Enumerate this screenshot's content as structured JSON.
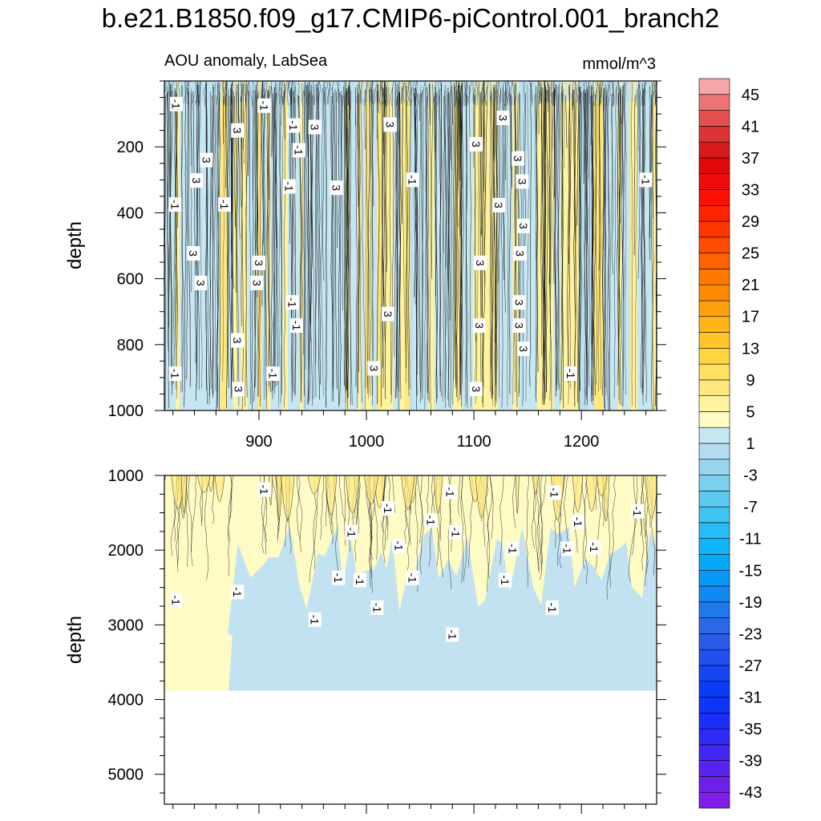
{
  "chart_data": {
    "type": "contour",
    "title": "b.e21.B1850.f09_g17.CMIP6-piControl.001_branch2",
    "subtitle_left": "AOU anomaly, LabSea",
    "units": "mmol/m^3",
    "colorbar": {
      "levels": [
        -45,
        -43,
        -41,
        -39,
        -37,
        -35,
        -33,
        -31,
        -29,
        -27,
        -25,
        -23,
        -21,
        -19,
        -17,
        -15,
        -13,
        -11,
        -9,
        -7,
        -5,
        -3,
        -1,
        1,
        3,
        5,
        7,
        9,
        11,
        13,
        15,
        17,
        19,
        21,
        23,
        25,
        27,
        29,
        31,
        33,
        35,
        37,
        39,
        41,
        43,
        45
      ],
      "tick_labels": [
        "-43",
        "-39",
        "-35",
        "-31",
        "-27",
        "-23",
        "-19",
        "-15",
        "-11",
        "-7",
        "-3",
        "1",
        "5",
        "9",
        "13",
        "17",
        "21",
        "25",
        "29",
        "33",
        "37",
        "41",
        "45"
      ],
      "colors": [
        "#7f1ee8",
        "#6d20ec",
        "#5a22f0",
        "#4426f4",
        "#2e2af7",
        "#1c2ff9",
        "#0f34fa",
        "#0a3cf8",
        "#1446f2",
        "#2050ee",
        "#2a5ae8",
        "#2a68e6",
        "#1f78ec",
        "#1288f2",
        "#0898f6",
        "#06a8f8",
        "#10b4f8",
        "#26bcf6",
        "#40c4f2",
        "#5ccaf0",
        "#7ccfee",
        "#98d4ee",
        "#b4dcf0",
        "#c6e6f2",
        "#fefbc4",
        "#fff3a0",
        "#ffe880",
        "#ffe060",
        "#ffd440",
        "#ffc428",
        "#ffb418",
        "#ffa00a",
        "#ff8c00",
        "#ff7800",
        "#ff6200",
        "#ff4c00",
        "#ff3600",
        "#ff2200",
        "#fb1006",
        "#ee0a0a",
        "#e00808",
        "#d41a1a",
        "#dc3434",
        "#e45050",
        "#ec7474",
        "#f6a6a6"
      ]
    },
    "panels": [
      {
        "name": "upper",
        "ylabel": "depth",
        "ylim": [
          0,
          1000
        ],
        "yticks": [
          200,
          400,
          600,
          800,
          1000
        ],
        "xlim": [
          812,
          1270
        ],
        "xticks": [
          900,
          1000,
          1100,
          1200
        ],
        "background_level": 1,
        "contour_labels": [
          {
            "text": "-1",
            "x": 823,
            "y": 70
          },
          {
            "text": "-1",
            "x": 905,
            "y": 75
          },
          {
            "text": "3",
            "x": 880,
            "y": 150
          },
          {
            "text": "-1",
            "x": 932,
            "y": 135
          },
          {
            "text": "3",
            "x": 952,
            "y": 140
          },
          {
            "text": "3",
            "x": 1022,
            "y": 132
          },
          {
            "text": "3",
            "x": 1127,
            "y": 112
          },
          {
            "text": "3",
            "x": 1102,
            "y": 192
          },
          {
            "text": "-1",
            "x": 937,
            "y": 210
          },
          {
            "text": "3",
            "x": 851,
            "y": 240
          },
          {
            "text": "3",
            "x": 1141,
            "y": 235
          },
          {
            "text": "3",
            "x": 842,
            "y": 302
          },
          {
            "text": "-1",
            "x": 1043,
            "y": 300
          },
          {
            "text": "3",
            "x": 1145,
            "y": 305
          },
          {
            "text": "-1",
            "x": 1260,
            "y": 300
          },
          {
            "text": "-1",
            "x": 928,
            "y": 320
          },
          {
            "text": "3",
            "x": 972,
            "y": 324
          },
          {
            "text": "-1",
            "x": 822,
            "y": 375
          },
          {
            "text": "-1",
            "x": 868,
            "y": 375
          },
          {
            "text": "3",
            "x": 1123,
            "y": 377
          },
          {
            "text": "3",
            "x": 1146,
            "y": 440
          },
          {
            "text": "3",
            "x": 839,
            "y": 523
          },
          {
            "text": "3",
            "x": 1143,
            "y": 523
          },
          {
            "text": "3",
            "x": 900,
            "y": 552
          },
          {
            "text": "3",
            "x": 1106,
            "y": 552
          },
          {
            "text": "3",
            "x": 846,
            "y": 613
          },
          {
            "text": "3",
            "x": 898,
            "y": 613
          },
          {
            "text": "-1",
            "x": 931,
            "y": 672
          },
          {
            "text": "3",
            "x": 1142,
            "y": 672
          },
          {
            "text": "3",
            "x": 1020,
            "y": 707
          },
          {
            "text": "-1",
            "x": 935,
            "y": 742
          },
          {
            "text": "3",
            "x": 1105,
            "y": 742
          },
          {
            "text": "3",
            "x": 1142,
            "y": 742
          },
          {
            "text": "3",
            "x": 880,
            "y": 787
          },
          {
            "text": "3",
            "x": 1146,
            "y": 813
          },
          {
            "text": "3",
            "x": 1007,
            "y": 872
          },
          {
            "text": "-1",
            "x": 822,
            "y": 888
          },
          {
            "text": "-1",
            "x": 913,
            "y": 888
          },
          {
            "text": "-1",
            "x": 1190,
            "y": 888
          },
          {
            "text": "3",
            "x": 881,
            "y": 935
          },
          {
            "text": "3",
            "x": 1102,
            "y": 935
          }
        ]
      },
      {
        "name": "lower",
        "ylabel": "depth",
        "ylim": [
          1000,
          5400
        ],
        "yticks": [
          1000,
          2000,
          3000,
          4000,
          5000
        ],
        "xlim": [
          812,
          1270
        ],
        "xticks": [
          900,
          1000,
          1100,
          1200
        ],
        "ocean_floor_depth": 3880,
        "contour_labels": [
          {
            "text": "-1",
            "x": 905,
            "y": 1190
          },
          {
            "text": "-1",
            "x": 1078,
            "y": 1220
          },
          {
            "text": "-1",
            "x": 1175,
            "y": 1230
          },
          {
            "text": "-1",
            "x": 1020,
            "y": 1440
          },
          {
            "text": "-1",
            "x": 1060,
            "y": 1600
          },
          {
            "text": "-1",
            "x": 1197,
            "y": 1620
          },
          {
            "text": "-1",
            "x": 1252,
            "y": 1480
          },
          {
            "text": "-1",
            "x": 986,
            "y": 1760
          },
          {
            "text": "-1",
            "x": 1083,
            "y": 1760
          },
          {
            "text": "-1",
            "x": 1030,
            "y": 1940
          },
          {
            "text": "-1",
            "x": 1136,
            "y": 1980
          },
          {
            "text": "-1",
            "x": 1187,
            "y": 1980
          },
          {
            "text": "-1",
            "x": 1212,
            "y": 1960
          },
          {
            "text": "-1",
            "x": 974,
            "y": 2370
          },
          {
            "text": "-1",
            "x": 994,
            "y": 2400
          },
          {
            "text": "-1",
            "x": 1043,
            "y": 2370
          },
          {
            "text": "-1",
            "x": 1129,
            "y": 2400
          },
          {
            "text": "-1",
            "x": 823,
            "y": 2670
          },
          {
            "text": "-1",
            "x": 880,
            "y": 2560
          },
          {
            "text": "-1",
            "x": 1010,
            "y": 2770
          },
          {
            "text": "-1",
            "x": 1173,
            "y": 2770
          },
          {
            "text": "-1",
            "x": 952,
            "y": 2930
          },
          {
            "text": "-1",
            "x": 1080,
            "y": 3130
          }
        ]
      }
    ]
  }
}
